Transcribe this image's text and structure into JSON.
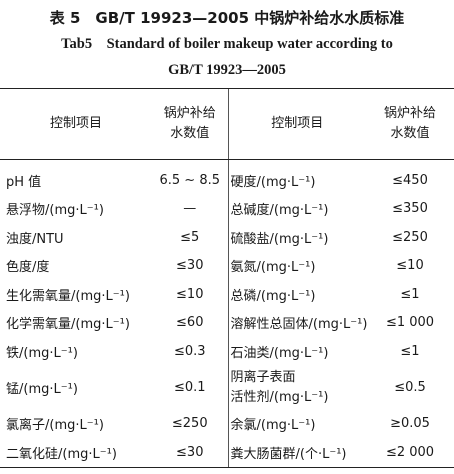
{
  "caption": {
    "cn": "表 5　GB/T 19923—2005 中锅炉补给水水质标准",
    "en_line1": "Tab5　Standard of boiler makeup water according to",
    "en_line2": "GB/T 19923—2005"
  },
  "table": {
    "headers": {
      "item": "控制项目",
      "value_line1": "锅炉补给",
      "value_line2": "水数值",
      "item2": "控制项目",
      "value2_line1": "锅炉补给",
      "value2_line2": "水数值"
    },
    "rows": [
      {
        "item1": "pH 值",
        "val1": "6.5 ~ 8.5",
        "item2": "硬度/(mg·L⁻¹)",
        "val2": "≤450"
      },
      {
        "item1": "悬浮物/(mg·L⁻¹)",
        "val1": "—",
        "item2": "总碱度/(mg·L⁻¹)",
        "val2": "≤350"
      },
      {
        "item1": "浊度/NTU",
        "val1": "≤5",
        "item2": "硫酸盐/(mg·L⁻¹)",
        "val2": "≤250"
      },
      {
        "item1": "色度/度",
        "val1": "≤30",
        "item2": "氨氮/(mg·L⁻¹)",
        "val2": "≤10"
      },
      {
        "item1": "生化需氧量/(mg·L⁻¹)",
        "val1": "≤10",
        "item2": "总磷/(mg·L⁻¹)",
        "val2": "≤1"
      },
      {
        "item1": "化学需氧量/(mg·L⁻¹)",
        "val1": "≤60",
        "item2": "溶解性总固体/(mg·L⁻¹)",
        "val2": "≤1 000"
      },
      {
        "item1": "铁/(mg·L⁻¹)",
        "val1": "≤0.3",
        "item2": "石油类/(mg·L⁻¹)",
        "val2": "≤1"
      },
      {
        "item1": "锰/(mg·L⁻¹)",
        "val1": "≤0.1",
        "item2_line1": "阴离子表面",
        "item2_line2": "活性剂/(mg·L⁻¹)",
        "val2": "≤0.5"
      },
      {
        "item1": "氯离子/(mg·L⁻¹)",
        "val1": "≤250",
        "item2": "余氯/(mg·L⁻¹)",
        "val2": "≥0.05"
      },
      {
        "item1": "二氧化硅/(mg·L⁻¹)",
        "val1": "≤30",
        "item2": "粪大肠菌群/(个·L⁻¹)",
        "val2": "≤2 000"
      }
    ]
  }
}
